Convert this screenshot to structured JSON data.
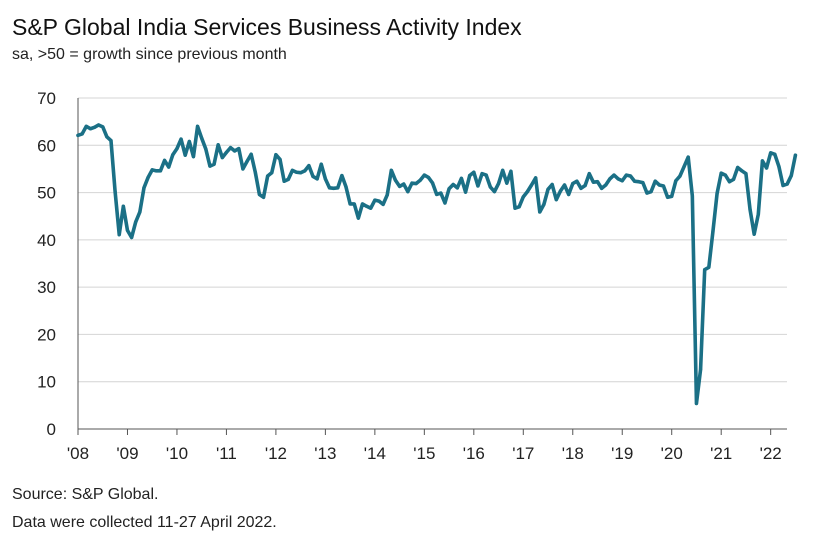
{
  "chart_data": {
    "type": "line",
    "title": "S&P Global India Services Business Activity Index",
    "subtitle": "sa, >50 = growth since previous month",
    "xlabel": "",
    "ylabel": "",
    "ylim": [
      0,
      70
    ],
    "yticks": [
      "0",
      "10",
      "20",
      "30",
      "40",
      "50",
      "60",
      "70"
    ],
    "xticks": [
      "'08",
      "'09",
      "'10",
      "'11",
      "'12",
      "'13",
      "'14",
      "'15",
      "'16",
      "'17",
      "'18",
      "'19",
      "'20",
      "'21",
      "'22"
    ],
    "grid": true,
    "line_color": "#1b7086",
    "series": [
      {
        "start": "2008-01",
        "values": [
          62.1,
          62.4,
          64.0,
          63.5,
          63.8,
          64.3,
          63.9,
          61.8,
          61.0,
          50.2,
          41.1,
          47.1,
          42.0,
          40.5,
          43.8,
          45.9,
          51.0,
          53.2,
          54.8,
          54.6,
          54.6,
          56.8,
          55.4,
          58.0,
          59.3,
          61.3,
          57.9,
          60.8,
          57.6,
          64.0,
          61.5,
          59.2,
          55.6,
          56.0,
          60.1,
          57.4,
          58.5,
          59.5,
          58.8,
          59.3,
          55.0,
          56.6,
          58.1,
          54.3,
          49.6,
          49.0,
          53.5,
          54.2,
          58.0,
          57.0,
          52.4,
          52.8,
          54.7,
          54.3,
          54.2,
          54.6,
          55.7,
          53.4,
          52.9,
          56.0,
          52.9,
          51.0,
          50.9,
          51.0,
          53.6,
          51.2,
          47.6,
          47.6,
          44.6,
          47.6,
          47.1,
          46.7,
          48.4,
          48.2,
          47.5,
          49.5,
          54.7,
          52.6,
          51.3,
          51.8,
          50.2,
          52.0,
          51.9,
          52.6,
          53.7,
          53.2,
          52.0,
          49.6,
          49.9,
          47.8,
          50.8,
          51.7,
          51.0,
          53.0,
          50.1,
          53.6,
          54.3,
          51.4,
          54.0,
          53.7,
          51.2,
          50.2,
          51.9,
          54.7,
          52.0,
          54.5,
          46.7,
          47.0,
          49.1,
          50.2,
          51.6,
          53.1,
          45.9,
          47.5,
          50.7,
          51.7,
          48.5,
          50.3,
          51.6,
          49.6,
          51.9,
          52.4,
          50.9,
          51.5,
          54.0,
          52.2,
          52.3,
          50.9,
          51.6,
          52.9,
          53.7,
          52.9,
          52.5,
          53.7,
          53.5,
          52.4,
          52.3,
          52.1,
          49.9,
          50.2,
          52.4,
          51.6,
          51.4,
          49.0,
          49.2,
          52.5,
          53.5,
          55.5,
          57.5,
          49.3,
          5.4,
          12.6,
          33.7,
          34.2,
          41.8,
          49.8,
          54.1,
          53.7,
          52.3,
          52.8,
          55.3,
          54.6,
          54.0,
          46.4,
          41.2,
          45.4,
          56.7,
          55.2,
          58.4,
          58.1,
          55.5,
          51.5,
          51.8,
          53.6,
          57.9
        ]
      }
    ]
  },
  "footer": {
    "source": "Source: S&P Global.",
    "note": "Data were collected 11-27 April 2022."
  }
}
